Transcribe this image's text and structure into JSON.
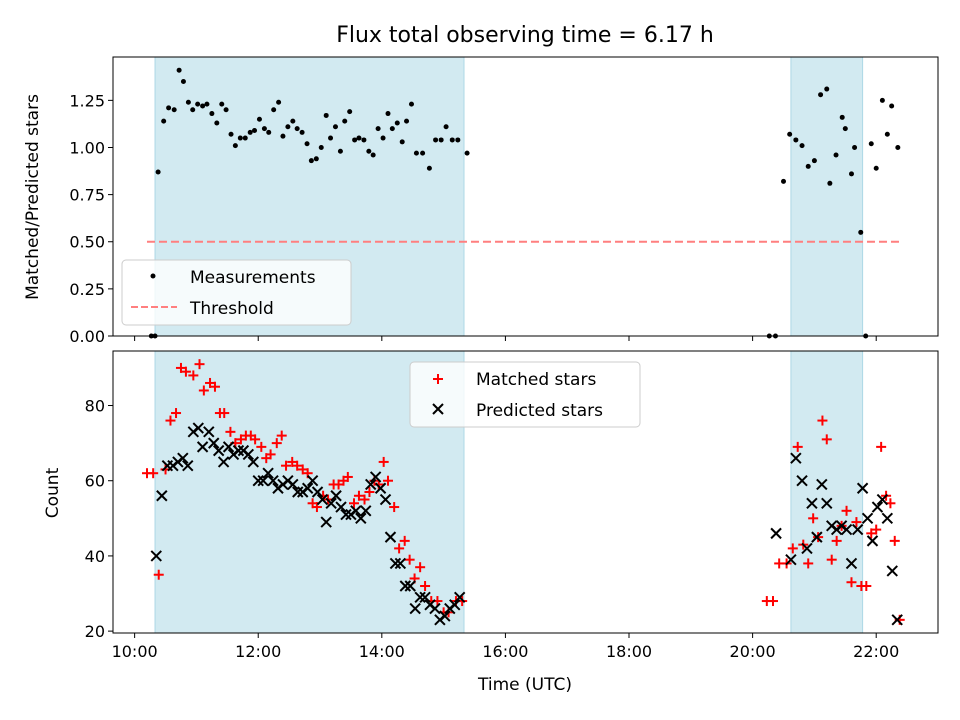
{
  "title": "Flux total observing time = 6.17 h",
  "xlabel": "Time (UTC)",
  "x_tick_labels": [
    "10:00",
    "12:00",
    "14:00",
    "16:00",
    "18:00",
    "20:00",
    "22:00"
  ],
  "colors": {
    "shade": "#add8e6",
    "measurements": "#000000",
    "threshold": "#ff7f7f",
    "matched": "#ff0000",
    "predicted": "#000000"
  },
  "chart_data": [
    {
      "type": "scatter",
      "ylabel": "Matched/Predicted stars",
      "xlim_hours": [
        9.65,
        23.0
      ],
      "ylim": [
        0,
        1.48
      ],
      "y_ticks": [
        "0.00",
        "0.25",
        "0.50",
        "0.75",
        "1.00",
        "1.25"
      ],
      "shaded_intervals_hours": [
        [
          10.33,
          15.33
        ],
        [
          20.62,
          21.78
        ]
      ],
      "legend": {
        "placement": "lower-left",
        "entries": [
          "Measurements",
          "Threshold"
        ]
      },
      "threshold": {
        "value": 0.5,
        "x_hours": [
          10.2,
          22.37
        ]
      },
      "series": [
        {
          "name": "Measurements",
          "marker": "dot",
          "points_hours": [
            [
              10.27,
              0.0
            ],
            [
              10.33,
              0.0
            ],
            [
              10.38,
              0.87
            ],
            [
              10.47,
              1.14
            ],
            [
              10.55,
              1.21
            ],
            [
              10.64,
              1.2
            ],
            [
              10.72,
              1.41
            ],
            [
              10.79,
              1.35
            ],
            [
              10.87,
              1.24
            ],
            [
              10.94,
              1.2
            ],
            [
              11.02,
              1.23
            ],
            [
              11.1,
              1.22
            ],
            [
              11.17,
              1.23
            ],
            [
              11.25,
              1.18
            ],
            [
              11.33,
              1.13
            ],
            [
              11.41,
              1.23
            ],
            [
              11.48,
              1.2
            ],
            [
              11.56,
              1.07
            ],
            [
              11.63,
              1.01
            ],
            [
              11.71,
              1.05
            ],
            [
              11.79,
              1.05
            ],
            [
              11.87,
              1.08
            ],
            [
              11.94,
              1.09
            ],
            [
              12.02,
              1.15
            ],
            [
              12.1,
              1.1
            ],
            [
              12.17,
              1.08
            ],
            [
              12.25,
              1.2
            ],
            [
              12.33,
              1.24
            ],
            [
              12.4,
              1.06
            ],
            [
              12.48,
              1.11
            ],
            [
              12.56,
              1.14
            ],
            [
              12.63,
              1.1
            ],
            [
              12.71,
              1.08
            ],
            [
              12.79,
              1.02
            ],
            [
              12.86,
              0.93
            ],
            [
              12.94,
              0.94
            ],
            [
              13.02,
              1.0
            ],
            [
              13.1,
              1.17
            ],
            [
              13.17,
              1.05
            ],
            [
              13.25,
              1.11
            ],
            [
              13.33,
              0.98
            ],
            [
              13.4,
              1.14
            ],
            [
              13.48,
              1.19
            ],
            [
              13.56,
              1.04
            ],
            [
              13.63,
              1.05
            ],
            [
              13.71,
              1.04
            ],
            [
              13.79,
              0.98
            ],
            [
              13.86,
              0.96
            ],
            [
              13.94,
              1.1
            ],
            [
              14.02,
              1.05
            ],
            [
              14.1,
              1.18
            ],
            [
              14.17,
              1.1
            ],
            [
              14.25,
              1.13
            ],
            [
              14.33,
              1.03
            ],
            [
              14.4,
              1.14
            ],
            [
              14.48,
              1.23
            ],
            [
              14.56,
              0.97
            ],
            [
              14.66,
              0.97
            ],
            [
              14.77,
              0.89
            ],
            [
              14.87,
              1.04
            ],
            [
              14.96,
              1.04
            ],
            [
              15.04,
              1.11
            ],
            [
              15.14,
              1.04
            ],
            [
              15.23,
              1.04
            ],
            [
              15.38,
              0.97
            ],
            [
              20.27,
              0.0
            ],
            [
              20.37,
              0.0
            ],
            [
              20.5,
              0.82
            ],
            [
              20.6,
              1.07
            ],
            [
              20.7,
              1.04
            ],
            [
              20.8,
              1.01
            ],
            [
              20.9,
              0.9
            ],
            [
              21.0,
              0.93
            ],
            [
              21.1,
              1.28
            ],
            [
              21.2,
              1.31
            ],
            [
              21.25,
              0.81
            ],
            [
              21.35,
              0.96
            ],
            [
              21.45,
              1.16
            ],
            [
              21.5,
              1.1
            ],
            [
              21.6,
              0.86
            ],
            [
              21.65,
              1.0
            ],
            [
              21.75,
              0.55
            ],
            [
              21.83,
              0.0
            ],
            [
              21.92,
              1.02
            ],
            [
              22.0,
              0.89
            ],
            [
              22.1,
              1.25
            ],
            [
              22.18,
              1.07
            ],
            [
              22.25,
              1.22
            ],
            [
              22.35,
              1.0
            ]
          ]
        }
      ]
    },
    {
      "type": "scatter",
      "ylabel": "Count",
      "xlim_hours": [
        9.65,
        23.0
      ],
      "ylim": [
        19.5,
        94.5
      ],
      "y_ticks": [
        "20",
        "40",
        "60",
        "80"
      ],
      "shaded_intervals_hours": [
        [
          10.33,
          15.33
        ],
        [
          20.62,
          21.78
        ]
      ],
      "legend": {
        "placement": "upper-center",
        "entries": [
          "Matched stars",
          "Predicted stars"
        ]
      },
      "series": [
        {
          "name": "Matched stars",
          "marker": "plus",
          "points_hours": [
            [
              10.2,
              62
            ],
            [
              10.3,
              62
            ],
            [
              10.39,
              35
            ],
            [
              10.5,
              63
            ],
            [
              10.58,
              76
            ],
            [
              10.67,
              78
            ],
            [
              10.75,
              90
            ],
            [
              10.83,
              89
            ],
            [
              10.95,
              88
            ],
            [
              11.05,
              91
            ],
            [
              11.12,
              84
            ],
            [
              11.22,
              86
            ],
            [
              11.3,
              85
            ],
            [
              11.38,
              78
            ],
            [
              11.45,
              78
            ],
            [
              11.55,
              73
            ],
            [
              11.63,
              70
            ],
            [
              11.72,
              71
            ],
            [
              11.8,
              72
            ],
            [
              11.88,
              72
            ],
            [
              11.95,
              71
            ],
            [
              12.05,
              69
            ],
            [
              12.13,
              66
            ],
            [
              12.2,
              67
            ],
            [
              12.3,
              70
            ],
            [
              12.38,
              72
            ],
            [
              12.45,
              64
            ],
            [
              12.55,
              65
            ],
            [
              12.63,
              64
            ],
            [
              12.72,
              63
            ],
            [
              12.8,
              62
            ],
            [
              12.88,
              54
            ],
            [
              12.95,
              53
            ],
            [
              13.05,
              56
            ],
            [
              13.13,
              55
            ],
            [
              13.22,
              59
            ],
            [
              13.3,
              59
            ],
            [
              13.38,
              60
            ],
            [
              13.45,
              61
            ],
            [
              13.55,
              54
            ],
            [
              13.63,
              56
            ],
            [
              13.72,
              55
            ],
            [
              13.8,
              57
            ],
            [
              13.88,
              60
            ],
            [
              13.95,
              59
            ],
            [
              14.03,
              65
            ],
            [
              14.1,
              60
            ],
            [
              14.2,
              53
            ],
            [
              14.28,
              42
            ],
            [
              14.37,
              44
            ],
            [
              14.45,
              39
            ],
            [
              14.53,
              34
            ],
            [
              14.62,
              37
            ],
            [
              14.7,
              32
            ],
            [
              14.8,
              28
            ],
            [
              14.9,
              28
            ],
            [
              15.0,
              25
            ],
            [
              15.08,
              25
            ],
            [
              15.2,
              28
            ],
            [
              15.3,
              28
            ],
            [
              20.23,
              28
            ],
            [
              20.33,
              28
            ],
            [
              20.43,
              38
            ],
            [
              20.55,
              38
            ],
            [
              20.65,
              42
            ],
            [
              20.73,
              69
            ],
            [
              20.82,
              43
            ],
            [
              20.9,
              38
            ],
            [
              20.98,
              50
            ],
            [
              21.06,
              45
            ],
            [
              21.13,
              76
            ],
            [
              21.2,
              71
            ],
            [
              21.28,
              39
            ],
            [
              21.36,
              44
            ],
            [
              21.44,
              48
            ],
            [
              21.52,
              52
            ],
            [
              21.6,
              33
            ],
            [
              21.68,
              49
            ],
            [
              21.76,
              32
            ],
            [
              21.84,
              32
            ],
            [
              21.92,
              46
            ],
            [
              22.0,
              47
            ],
            [
              22.08,
              69
            ],
            [
              22.16,
              56
            ],
            [
              22.23,
              54
            ],
            [
              22.3,
              44
            ],
            [
              22.38,
              23
            ]
          ]
        },
        {
          "name": "Predicted stars",
          "marker": "x",
          "points_hours": [
            [
              10.35,
              40
            ],
            [
              10.44,
              56
            ],
            [
              10.53,
              64
            ],
            [
              10.62,
              64
            ],
            [
              10.7,
              65
            ],
            [
              10.78,
              66
            ],
            [
              10.86,
              64
            ],
            [
              10.95,
              73
            ],
            [
              11.03,
              74
            ],
            [
              11.1,
              69
            ],
            [
              11.2,
              73
            ],
            [
              11.28,
              70
            ],
            [
              11.36,
              68
            ],
            [
              11.44,
              65
            ],
            [
              11.52,
              69
            ],
            [
              11.6,
              67
            ],
            [
              11.68,
              68
            ],
            [
              11.76,
              68
            ],
            [
              11.84,
              67
            ],
            [
              11.92,
              65
            ],
            [
              12.0,
              60
            ],
            [
              12.08,
              60
            ],
            [
              12.16,
              62
            ],
            [
              12.24,
              60
            ],
            [
              12.32,
              58
            ],
            [
              12.4,
              59
            ],
            [
              12.48,
              60
            ],
            [
              12.56,
              59
            ],
            [
              12.64,
              57
            ],
            [
              12.72,
              57
            ],
            [
              12.8,
              58
            ],
            [
              12.88,
              60
            ],
            [
              12.96,
              57
            ],
            [
              13.04,
              55
            ],
            [
              13.1,
              49
            ],
            [
              13.18,
              54
            ],
            [
              13.26,
              56
            ],
            [
              13.34,
              53
            ],
            [
              13.42,
              51
            ],
            [
              13.5,
              51
            ],
            [
              13.58,
              52
            ],
            [
              13.66,
              50
            ],
            [
              13.74,
              52
            ],
            [
              13.82,
              59
            ],
            [
              13.9,
              61
            ],
            [
              13.98,
              58
            ],
            [
              14.06,
              55
            ],
            [
              14.14,
              45
            ],
            [
              14.22,
              38
            ],
            [
              14.3,
              38
            ],
            [
              14.38,
              32
            ],
            [
              14.46,
              32
            ],
            [
              14.54,
              26
            ],
            [
              14.62,
              29
            ],
            [
              14.7,
              29
            ],
            [
              14.78,
              27
            ],
            [
              14.86,
              26
            ],
            [
              14.94,
              23
            ],
            [
              15.02,
              24
            ],
            [
              15.1,
              26
            ],
            [
              15.18,
              27
            ],
            [
              15.26,
              29
            ],
            [
              20.38,
              46
            ],
            [
              20.62,
              39
            ],
            [
              20.7,
              66
            ],
            [
              20.8,
              60
            ],
            [
              20.88,
              42
            ],
            [
              20.96,
              54
            ],
            [
              21.04,
              45
            ],
            [
              21.12,
              59
            ],
            [
              21.2,
              54
            ],
            [
              21.28,
              48
            ],
            [
              21.36,
              47
            ],
            [
              21.44,
              48
            ],
            [
              21.52,
              47
            ],
            [
              21.6,
              38
            ],
            [
              21.7,
              47
            ],
            [
              21.78,
              58
            ],
            [
              21.86,
              50
            ],
            [
              21.94,
              44
            ],
            [
              22.02,
              53
            ],
            [
              22.1,
              55
            ],
            [
              22.18,
              50
            ],
            [
              22.26,
              36
            ],
            [
              22.34,
              23
            ]
          ]
        }
      ]
    }
  ]
}
